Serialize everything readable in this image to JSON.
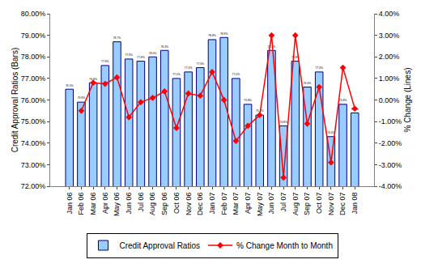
{
  "chart_data": {
    "type": "bar",
    "categories": [
      "Jan 06",
      "Feb 06",
      "Mar 06",
      "Apr 06",
      "May 06",
      "Jun 06",
      "Jul 06",
      "Aug 06",
      "Sep 06",
      "Oct 06",
      "Nov 06",
      "Dec 06",
      "Jan 07",
      "Feb 07",
      "Mar 07",
      "Apr 07",
      "May 07",
      "Jun 07",
      "Jul 07",
      "Aug 07",
      "Sep 07",
      "Oct 07",
      "Nov 07",
      "Dec 07",
      "Jan 08"
    ],
    "y_label": "Credit Approval Ratios (Bars)",
    "y2_label": "% Change (Lines)",
    "ylim": [
      72,
      80
    ],
    "yticks": [
      {
        "value": 72,
        "label": "72.00%"
      },
      {
        "value": 73,
        "label": "73.00%"
      },
      {
        "value": 74,
        "label": "74.00%"
      },
      {
        "value": 75,
        "label": "75.00%"
      },
      {
        "value": 76,
        "label": "76.00%"
      },
      {
        "value": 77,
        "label": "77.00%"
      },
      {
        "value": 78,
        "label": "78.00%"
      },
      {
        "value": 79,
        "label": "79.00%"
      },
      {
        "value": 80,
        "label": "80.00%"
      }
    ],
    "y2lim": [
      -4,
      4
    ],
    "y2ticks": [
      {
        "value": -4,
        "label": "-4.00%"
      },
      {
        "value": -3,
        "label": "-3.00%"
      },
      {
        "value": -2,
        "label": "-2.00%"
      },
      {
        "value": -1,
        "label": "-1.00%"
      },
      {
        "value": 0,
        "label": "0.00%"
      },
      {
        "value": 1,
        "label": "1.00%"
      },
      {
        "value": 2,
        "label": "2.00%"
      },
      {
        "value": 3,
        "label": "3.00%"
      },
      {
        "value": 4,
        "label": "4.00%"
      }
    ],
    "grid": false,
    "legend": "bottom",
    "series": [
      {
        "name": "Credit Approval Ratios",
        "type": "bar",
        "color": "#99ccff",
        "data_labels": true,
        "values": [
          76.5,
          75.9,
          76.8,
          77.6,
          78.7,
          77.9,
          77.8,
          78.0,
          78.3,
          77.0,
          77.3,
          77.5,
          78.8,
          78.9,
          77.0,
          75.8,
          75.3,
          78.3,
          74.8,
          77.8,
          76.6,
          77.3,
          74.3,
          75.8,
          75.4
        ],
        "value_labels": [
          "76.5%",
          "75.9%",
          "76.8%",
          "77.6%",
          "78.7%",
          "77.9%",
          "77.8%",
          "78.0%",
          "78.3%",
          "77.0%",
          "77.3%",
          "77.5%",
          "78.8%",
          "78.9%",
          "77.0%",
          "75.8%",
          "75.3%",
          "78.3%",
          "74.8%",
          "77.8%",
          "76.6%",
          "77.3%",
          "74.3%",
          "75.8%",
          "75.4%"
        ]
      },
      {
        "name": "% Change Month to Month",
        "type": "line",
        "axis": "y2",
        "color": "#ff0000",
        "marker": "diamond",
        "values": [
          null,
          -0.5,
          0.8,
          0.75,
          1.05,
          -0.8,
          -0.1,
          0.1,
          0.4,
          -1.3,
          0.3,
          0.2,
          1.3,
          0.0,
          -1.9,
          -1.2,
          -0.7,
          3.0,
          -3.6,
          3.0,
          -1.1,
          0.6,
          -2.9,
          1.5,
          -0.4
        ]
      }
    ]
  }
}
